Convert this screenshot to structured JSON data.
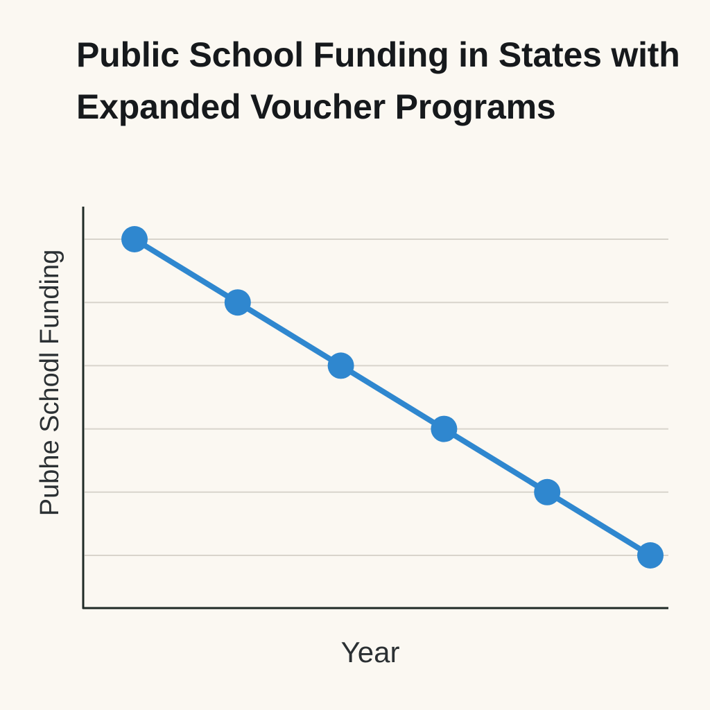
{
  "chart_data": {
    "type": "line",
    "title": "Public School Funding in States with Expanded Voucher Programs",
    "xlabel": "Year",
    "ylabel": "Pubhe Schodl Funding",
    "grid": true,
    "series": [
      {
        "values": [
          6,
          5,
          4,
          3,
          2,
          1
        ],
        "color": "#2f87cf"
      }
    ],
    "ylim": [
      0.3,
      6.5
    ],
    "axis_color": "#1f2a26",
    "grid_color": "#d8d4cc"
  }
}
